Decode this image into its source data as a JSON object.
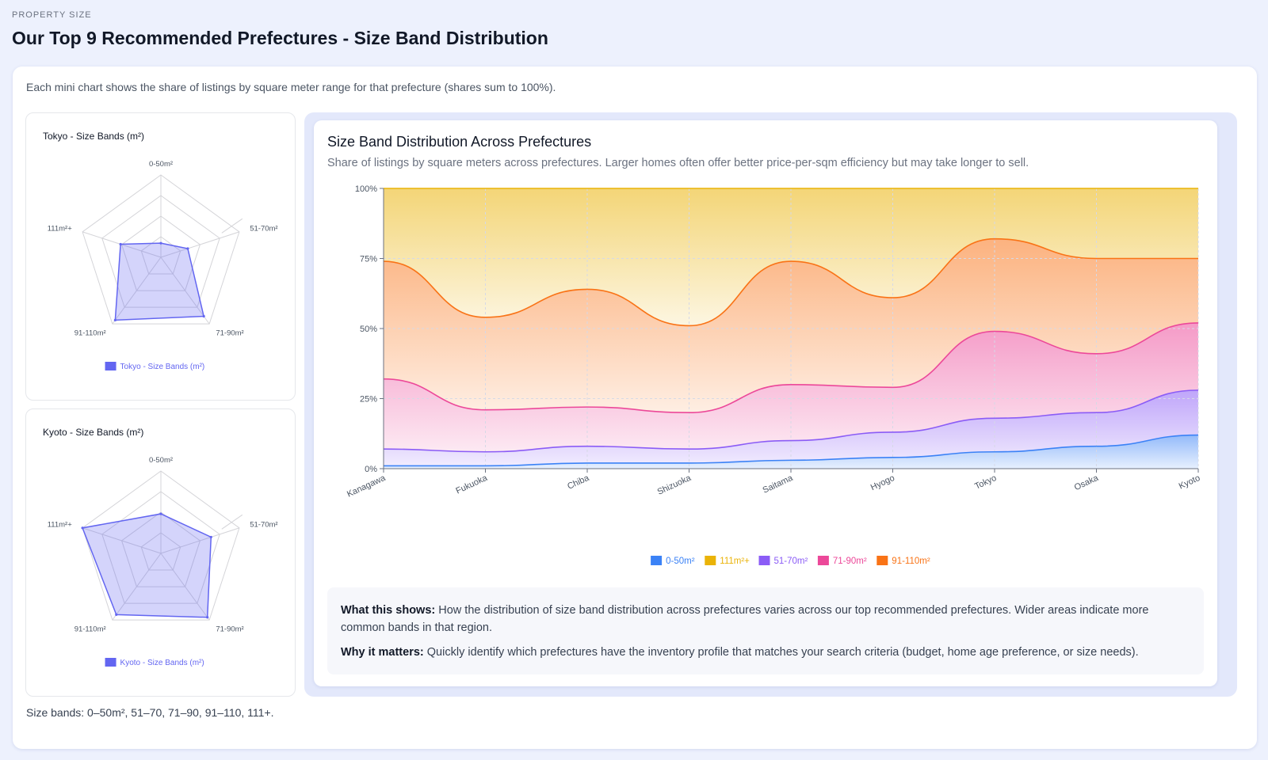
{
  "header": {
    "eyebrow": "PROPERTY SIZE",
    "title": "Our Top 9 Recommended Prefectures - Size Band Distribution"
  },
  "card": {
    "description": "Each mini chart shows the share of listings by square meter range for that prefecture (shares sum to 100%).",
    "footnote": "Size bands: 0–50m², 51–70, 71–90, 91–110, 111+."
  },
  "info": {
    "what_label": "What this shows:",
    "what_text": "How the distribution of size band distribution across prefectures varies across our top recommended prefectures. Wider areas indicate more common bands in that region.",
    "why_label": "Why it matters:",
    "why_text": "Quickly identify which prefectures have the inventory profile that matches your search criteria (budget, home age preference, or size needs)."
  },
  "chart_data": [
    {
      "type": "radar",
      "title": "Tokyo - Size Bands (m²)",
      "axes": [
        "0-50m²",
        "51-70m²",
        "71-90m²",
        "91-110m²",
        "111m²+"
      ],
      "series": [
        {
          "name": "Tokyo - Size Bands (m²)",
          "values": [
            6,
            12,
            31,
            33,
            18
          ],
          "color": "#6366f1"
        }
      ],
      "rmax": 35,
      "legend": "bottom"
    },
    {
      "type": "radar",
      "title": "Kyoto - Size Bands (m²)",
      "axes": [
        "0-50m²",
        "51-70m²",
        "71-90m²",
        "91-110m²",
        "111m²+"
      ],
      "series": [
        {
          "name": "Kyoto - Size Bands (m²)",
          "values": [
            12,
            16,
            24,
            23,
            25
          ],
          "color": "#6366f1"
        }
      ],
      "rmax": 25,
      "legend": "bottom"
    },
    {
      "type": "area",
      "stacked": true,
      "title": "Size Band Distribution Across Prefectures",
      "subtitle": "Share of listings by square meters across prefectures. Larger homes often offer better price-per-sqm efficiency but may take longer to sell.",
      "categories": [
        "Kanagawa",
        "Fukuoka",
        "Chiba",
        "Shizuoka",
        "Saitama",
        "Hyogo",
        "Tokyo",
        "Osaka",
        "Kyoto"
      ],
      "series": [
        {
          "name": "0-50m²",
          "color": "#3b82f6",
          "values": [
            1,
            1,
            2,
            2,
            3,
            4,
            6,
            8,
            12
          ]
        },
        {
          "name": "51-70m²",
          "color": "#8b5cf6",
          "values": [
            6,
            5,
            6,
            5,
            7,
            9,
            12,
            12,
            16
          ]
        },
        {
          "name": "71-90m²",
          "color": "#ec4899",
          "values": [
            25,
            15,
            14,
            13,
            20,
            16,
            31,
            21,
            24
          ]
        },
        {
          "name": "91-110m²",
          "color": "#f97316",
          "values": [
            42,
            33,
            42,
            31,
            44,
            32,
            33,
            34,
            23
          ]
        },
        {
          "name": "111m²+",
          "color": "#eab308",
          "values": [
            26,
            46,
            36,
            49,
            26,
            39,
            18,
            25,
            25
          ]
        }
      ],
      "legend_order": [
        "0-50m²",
        "111m²+",
        "51-70m²",
        "71-90m²",
        "91-110m²"
      ],
      "yticks": [
        "0%",
        "25%",
        "50%",
        "75%",
        "100%"
      ],
      "ylim": [
        0,
        100
      ],
      "grid": true,
      "legend": "bottom"
    }
  ]
}
